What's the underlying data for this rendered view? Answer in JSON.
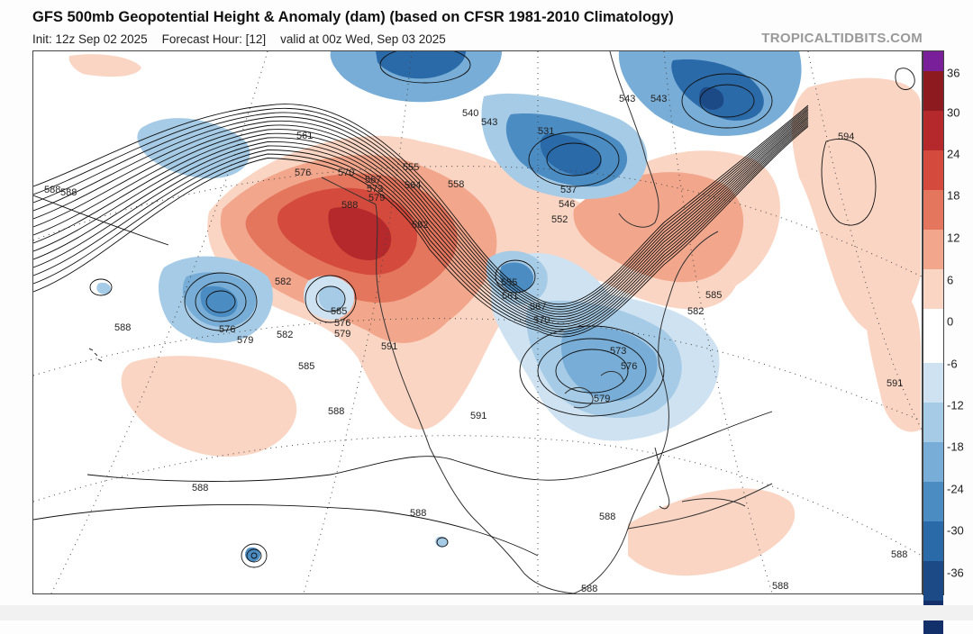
{
  "header": {
    "title": "GFS 500mb Geopotential Height & Anomaly (dam) (based on CFSR 1981-2010 Climatology)",
    "init": "Init: 12z Sep 02 2025",
    "forecast_hour": "Forecast Hour: [12]",
    "valid": "valid at 00z Wed, Sep 03 2025",
    "credit": "TROPICALTIDBITS.COM"
  },
  "colorbar": {
    "ticks": [
      "36",
      "30",
      "24",
      "18",
      "12",
      "6",
      "0",
      "-6",
      "-12",
      "-18",
      "-24",
      "-30",
      "-36"
    ],
    "colors": {
      "top": "#7a1f9a",
      "r5": "#8c1a1f",
      "r4": "#b5282b",
      "r3": "#d44a3c",
      "r2": "#e5765e",
      "r1": "#f2a78c",
      "r0": "#fbd5c3",
      "neutral": "#ffffff",
      "b0": "#cfe2f1",
      "b1": "#a6cbe6",
      "b2": "#77add6",
      "b3": "#4b8cc3",
      "b4": "#2b6aa8",
      "b5": "#1c4a87",
      "b6": "#13306a"
    }
  },
  "contour_labels": [
    {
      "text": "588",
      "dx": 0
    },
    {
      "text": "561",
      "dx": 0
    },
    {
      "text": "576",
      "dx": 0
    },
    {
      "text": "570",
      "dx": 0
    },
    {
      "text": "567",
      "dx": 0
    },
    {
      "text": "573",
      "dx": 0
    },
    {
      "text": "579",
      "dx": 0
    },
    {
      "text": "588",
      "dx": 0
    },
    {
      "text": "585",
      "dx": 0
    },
    {
      "text": "555",
      "dx": 0
    },
    {
      "text": "564",
      "dx": 0
    },
    {
      "text": "558",
      "dx": 0
    },
    {
      "text": "582",
      "dx": 0
    },
    {
      "text": "540",
      "dx": 0
    },
    {
      "text": "543",
      "dx": 0
    },
    {
      "text": "531",
      "dx": 0
    },
    {
      "text": "537",
      "dx": 0
    },
    {
      "text": "546",
      "dx": 0
    },
    {
      "text": "552",
      "dx": 0
    },
    {
      "text": "543",
      "dx": 0
    },
    {
      "text": "543",
      "dx": 0
    },
    {
      "text": "594",
      "dx": 0
    },
    {
      "text": "585",
      "dx": 0
    },
    {
      "text": "582",
      "dx": 0
    },
    {
      "text": "582",
      "dx": 0
    },
    {
      "text": "576",
      "dx": 0
    },
    {
      "text": "579",
      "dx": 0
    },
    {
      "text": "582",
      "dx": 0
    },
    {
      "text": "576",
      "dx": 0
    },
    {
      "text": "579",
      "dx": 0
    },
    {
      "text": "588",
      "dx": 0
    },
    {
      "text": "585",
      "dx": 0
    },
    {
      "text": "591",
      "dx": 0
    },
    {
      "text": "588",
      "dx": 0
    },
    {
      "text": "591",
      "dx": 0
    },
    {
      "text": "555",
      "dx": 0
    },
    {
      "text": "561",
      "dx": 0
    },
    {
      "text": "567",
      "dx": 0
    },
    {
      "text": "570",
      "dx": 0
    },
    {
      "text": "573",
      "dx": 0
    },
    {
      "text": "576",
      "dx": 0
    },
    {
      "text": "579",
      "dx": 0
    },
    {
      "text": "588",
      "dx": 0
    },
    {
      "text": "591",
      "dx": 0
    },
    {
      "text": "588",
      "dx": 0
    },
    {
      "text": "588",
      "dx": 0
    },
    {
      "text": "588",
      "dx": 0
    },
    {
      "text": "588",
      "dx": 0
    },
    {
      "text": "588",
      "dx": 0
    },
    {
      "text": "588",
      "dx": 0
    }
  ]
}
